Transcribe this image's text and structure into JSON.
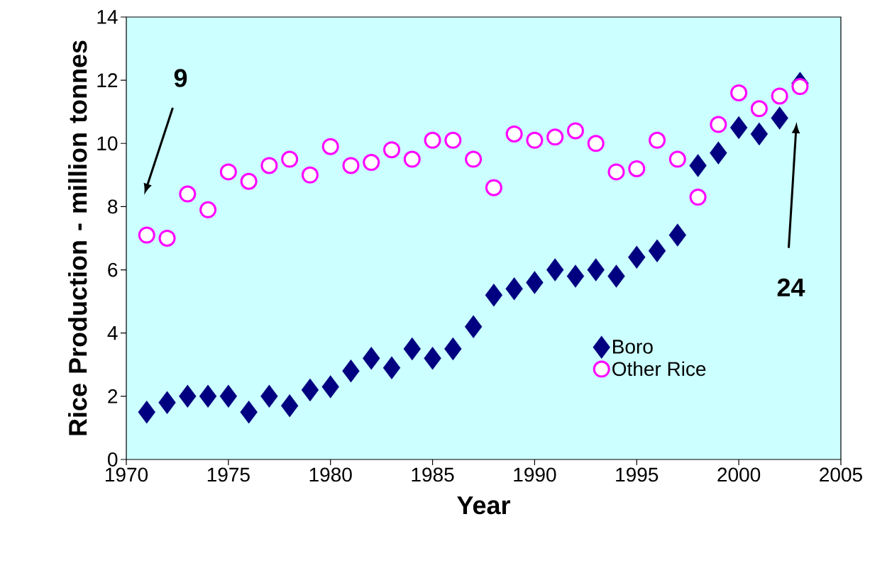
{
  "chart_data": {
    "type": "scatter",
    "xlabel": "Year",
    "ylabel": "Rice Production - million tonnes",
    "x": [
      1971,
      1972,
      1973,
      1974,
      1975,
      1976,
      1977,
      1978,
      1979,
      1980,
      1981,
      1982,
      1983,
      1984,
      1985,
      1986,
      1987,
      1988,
      1989,
      1990,
      1991,
      1992,
      1993,
      1994,
      1995,
      1996,
      1997,
      1998,
      1999,
      2000,
      2001,
      2002,
      2003
    ],
    "series": [
      {
        "name": "Boro",
        "color": "#000080",
        "marker": "diamond",
        "values": [
          1.5,
          1.8,
          2.0,
          2.0,
          2.0,
          1.5,
          2.0,
          1.7,
          2.2,
          2.3,
          2.8,
          3.2,
          2.9,
          3.5,
          3.2,
          3.5,
          4.2,
          5.2,
          5.4,
          5.6,
          6.0,
          5.8,
          6.0,
          5.8,
          6.4,
          6.6,
          7.1,
          9.3,
          9.7,
          10.5,
          10.3,
          10.8,
          11.9
        ]
      },
      {
        "name": "Other Rice",
        "color": "#ff00ff",
        "marker": "circle",
        "values": [
          7.1,
          7.0,
          8.4,
          7.9,
          9.1,
          8.8,
          9.3,
          9.5,
          9.0,
          9.9,
          9.3,
          9.4,
          9.8,
          9.5,
          10.1,
          10.1,
          9.5,
          8.6,
          10.3,
          10.1,
          10.2,
          10.4,
          10.0,
          9.1,
          9.2,
          10.1,
          9.5,
          8.3,
          10.6,
          11.6,
          11.1,
          11.5,
          11.8
        ]
      }
    ],
    "xlim": [
      1970,
      2005
    ],
    "xticks": [
      1970,
      1975,
      1980,
      1985,
      1990,
      1995,
      2000,
      2005
    ],
    "ylim": [
      0,
      14
    ],
    "yticks": [
      0,
      2,
      4,
      6,
      8,
      10,
      12,
      14
    ],
    "annotations": [
      "9",
      "24"
    ],
    "grid": false,
    "legend": "bottom right"
  }
}
